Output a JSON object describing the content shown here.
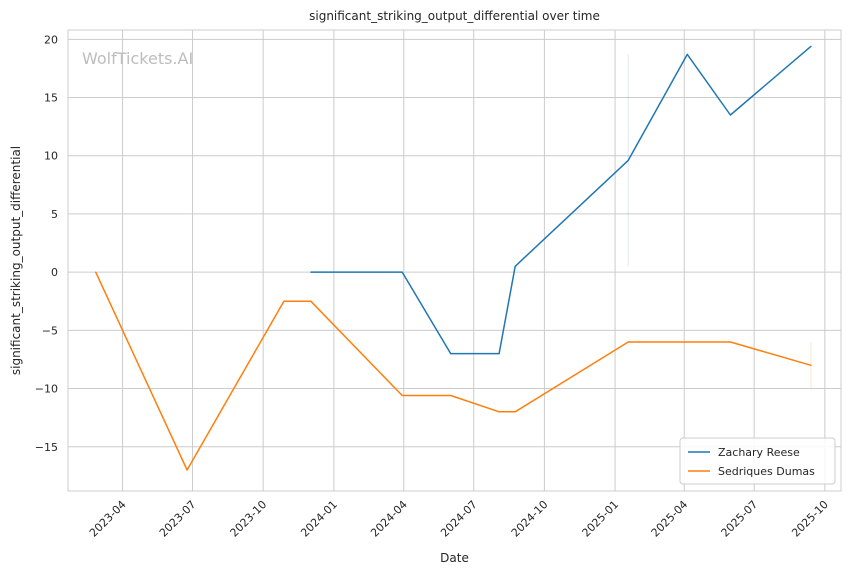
{
  "chart_data": {
    "type": "line",
    "title": "significant_striking_output_differential over time",
    "xlabel": "Date",
    "ylabel": "significant_striking_output_differential",
    "watermark": "WolfTickets.AI",
    "x_axis_type": "date",
    "xlim": [
      "2023-01-20",
      "2025-10-22"
    ],
    "ylim": [
      -18.8,
      20.8
    ],
    "x_ticks": [
      "2023-04-01",
      "2023-07-01",
      "2023-10-01",
      "2024-01-01",
      "2024-04-01",
      "2024-07-01",
      "2024-10-01",
      "2025-01-01",
      "2025-04-01",
      "2025-07-01",
      "2025-10-01"
    ],
    "x_tick_labels": [
      "2023-04",
      "2023-07",
      "2023-10",
      "2024-01",
      "2024-04",
      "2024-07",
      "2024-10",
      "2025-01",
      "2025-04",
      "2025-07",
      "2025-10"
    ],
    "y_ticks": [
      -15,
      -10,
      -5,
      0,
      5,
      10,
      15,
      20
    ],
    "y_tick_labels": [
      "−15",
      "−10",
      "−5",
      "0",
      "5",
      "10",
      "15",
      "20"
    ],
    "grid": true,
    "legend_position": "bottom-right",
    "series": [
      {
        "name": "Zachary Reese",
        "color": "#1f77b4",
        "points": [
          {
            "x": "2023-12-02",
            "y": 0
          },
          {
            "x": "2024-03-30",
            "y": 0
          },
          {
            "x": "2024-06-01",
            "y": -7
          },
          {
            "x": "2024-08-03",
            "y": -7
          },
          {
            "x": "2024-08-24",
            "y": 0.5
          },
          {
            "x": "2025-01-18",
            "y": 9.6
          },
          {
            "x": "2025-04-05",
            "y": 18.7
          },
          {
            "x": "2025-05-31",
            "y": 13.5
          },
          {
            "x": "2025-09-13",
            "y": 19.4
          }
        ]
      },
      {
        "name": "Sedriques Dumas",
        "color": "#ff7f0e",
        "points": [
          {
            "x": "2023-02-25",
            "y": 0
          },
          {
            "x": "2023-06-24",
            "y": -17
          },
          {
            "x": "2023-10-28",
            "y": -2.5
          },
          {
            "x": "2023-12-02",
            "y": -2.5
          },
          {
            "x": "2024-03-30",
            "y": -10.6
          },
          {
            "x": "2024-06-01",
            "y": -10.6
          },
          {
            "x": "2024-08-03",
            "y": -12
          },
          {
            "x": "2024-08-24",
            "y": -12
          },
          {
            "x": "2025-01-18",
            "y": -6
          },
          {
            "x": "2025-05-31",
            "y": -6
          },
          {
            "x": "2025-09-13",
            "y": -8
          }
        ]
      }
    ]
  }
}
